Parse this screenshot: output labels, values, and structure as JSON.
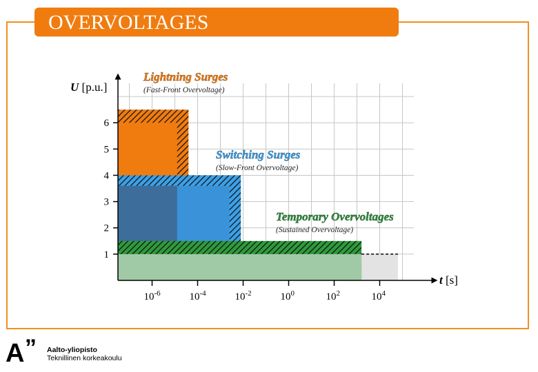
{
  "page": {
    "title": "OVERVOLTAGES"
  },
  "logo": {
    "mark_a": "A",
    "mark_q": "”",
    "line1": "Aalto-yliopisto",
    "line2": "Teknillinen korkeakoulu"
  },
  "colors": {
    "accent": "#f07c10",
    "frame": "#f0901e",
    "lightning": "#f07c10",
    "switching_outer": "#3d6d9b",
    "switching_inner": "#3a93d8",
    "temporary": "#a0caa6",
    "tail": "#e3e3e3",
    "hatch_lightning": "#f07c10",
    "hatch_switching": "#3da0e6",
    "hatch_temporary": "#2f9a3c"
  },
  "chart_data": {
    "type": "area",
    "title": "OVERVOLTAGES",
    "ylabel": {
      "symbol": "U",
      "unit": "[p.u.]"
    },
    "xlabel": {
      "symbol": "t",
      "unit": "[s]"
    },
    "x_scale": "log",
    "xlim_exp": [
      -7.5,
      5.5
    ],
    "ylim": [
      0,
      7.5
    ],
    "x_ticks": [
      {
        "exp": -6,
        "base": "10",
        "sup": "-6"
      },
      {
        "exp": -4,
        "base": "10",
        "sup": "-4"
      },
      {
        "exp": -2,
        "base": "10",
        "sup": "-2"
      },
      {
        "exp": 0,
        "base": "10",
        "sup": "0"
      },
      {
        "exp": 2,
        "base": "10",
        "sup": "2"
      },
      {
        "exp": 4,
        "base": "10",
        "sup": "4"
      }
    ],
    "y_ticks": [
      1,
      2,
      3,
      4,
      5,
      6
    ],
    "grid": true,
    "regions": [
      {
        "name": "Lightning Surges",
        "subtitle": "(Fast-Front Overvoltage)",
        "x_from_exp": -7.5,
        "x_to_exp": -4.9,
        "y_to": 6.5,
        "y_hatch_to": 6.5,
        "x_hatch_to_exp": -4.4
      },
      {
        "name": "Switching Surges",
        "subtitle": "(Slow-Front Overvoltage)",
        "x_from_exp": -7.5,
        "x_to_exp": -2.1,
        "y_to": 4.0,
        "x_solid_to_exp": -2.6,
        "y_solid_to": 3.6
      },
      {
        "name": "Temporary Overvoltages",
        "subtitle": "(Sustained Overvoltage)",
        "x_from_exp": -7.5,
        "x_to_exp": 3.2,
        "y_to": 1.5,
        "y_solid_to": 1.0
      }
    ],
    "dashed_line": {
      "y": 1.0,
      "x_from_exp": 3.2,
      "x_to_exp": 4.8
    }
  }
}
